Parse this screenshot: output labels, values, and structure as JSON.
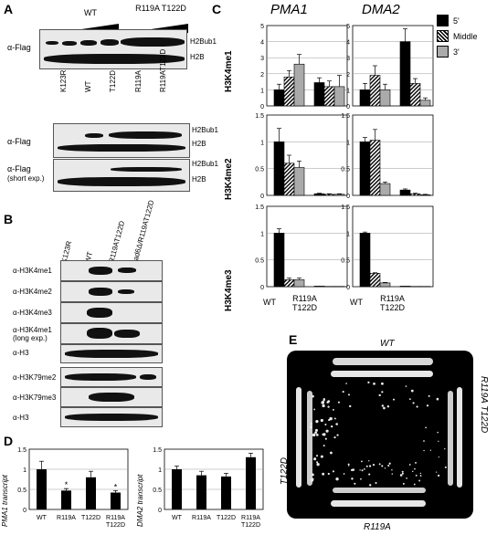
{
  "panels": {
    "a": {
      "letter": "A",
      "top_lanes": [
        "WT",
        "R119A T122D"
      ],
      "top_antibody": "α-Flag",
      "top_bands": [
        "H2Bub1",
        "H2B"
      ],
      "mid_lanes": [
        "K123R",
        "WT",
        "T122D",
        "R119A",
        "R119AT122D"
      ],
      "mid_antibody": "α-Flag",
      "mid_short_antibody": "α-Flag",
      "mid_short_note": "(short exp.)",
      "mid_bands": [
        "H2Bub1",
        "H2B"
      ],
      "short_bands": [
        "H2Bub1",
        "H2B"
      ]
    },
    "b": {
      "letter": "B",
      "lanes": [
        "K123R",
        "WT",
        "R119AT122D",
        "rad6Δ/R119AT122D"
      ],
      "rows1": [
        "α-H3K4me1",
        "α-H3K4me2",
        "α-H3K4me3",
        "α-H3K4me1",
        "α-H3"
      ],
      "long_note": "(long exp.)",
      "rows2": [
        "α-H3K79me2",
        "α-H3K79me3",
        "α-H3"
      ]
    },
    "c": {
      "letter": "C",
      "col_titles": [
        "PMA1",
        "DMA2"
      ],
      "row_labels": [
        "H3K4me1",
        "H3K4me2",
        "H3K4me3"
      ],
      "x_labels": [
        "WT",
        "R119A",
        "T122D"
      ],
      "legend": [
        "5'",
        "Middle",
        "3'"
      ]
    },
    "d": {
      "letter": "D",
      "ylabels": [
        "PMA1 transcript",
        "DMA2 transcript"
      ],
      "x_labels": [
        "WT",
        "R119A",
        "T122D",
        "R119A",
        "T122D"
      ],
      "star": "*"
    },
    "e": {
      "letter": "E",
      "labels": [
        "WT",
        "T122D",
        "R119A T122D",
        "R119A"
      ]
    }
  },
  "chart_data": [
    {
      "type": "bar",
      "panel": "C",
      "gene": "PMA1",
      "mark": "H3K4me1",
      "categories": [
        "WT",
        "R119A T122D"
      ],
      "series": [
        {
          "name": "5'",
          "values": [
            1.0,
            1.45
          ]
        },
        {
          "name": "Middle",
          "values": [
            1.8,
            1.2
          ]
        },
        {
          "name": "3'",
          "values": [
            2.6,
            1.2
          ]
        }
      ],
      "errors": [
        [
          0.35,
          0.3
        ],
        [
          0.4,
          0.35
        ],
        [
          0.6,
          0.7
        ]
      ],
      "ylim": [
        0,
        5
      ],
      "yticks": [
        0,
        1,
        2,
        3,
        4,
        5
      ]
    },
    {
      "type": "bar",
      "panel": "C",
      "gene": "DMA2",
      "mark": "H3K4me1",
      "categories": [
        "WT",
        "R119A T122D"
      ],
      "series": [
        {
          "name": "5'",
          "values": [
            1.0,
            4.0
          ]
        },
        {
          "name": "Middle",
          "values": [
            1.9,
            1.4
          ]
        },
        {
          "name": "3'",
          "values": [
            1.0,
            0.35
          ]
        }
      ],
      "errors": [
        [
          0.4,
          0.8
        ],
        [
          0.6,
          0.3
        ],
        [
          0.35,
          0.15
        ]
      ],
      "ylim": [
        0,
        5
      ],
      "yticks": [
        0,
        1,
        2,
        3,
        4,
        5
      ]
    },
    {
      "type": "bar",
      "panel": "C",
      "gene": "PMA1",
      "mark": "H3K4me2",
      "categories": [
        "WT",
        "R119A T122D"
      ],
      "series": [
        {
          "name": "5'",
          "values": [
            1.0,
            0.03
          ]
        },
        {
          "name": "Middle",
          "values": [
            0.6,
            0.02
          ]
        },
        {
          "name": "3'",
          "values": [
            0.52,
            0.02
          ]
        }
      ],
      "errors": [
        [
          0.25,
          0.01
        ],
        [
          0.15,
          0.01
        ],
        [
          0.12,
          0.01
        ]
      ],
      "ylim": [
        0,
        1.5
      ],
      "yticks": [
        0,
        0.5,
        1,
        1.5
      ]
    },
    {
      "type": "bar",
      "panel": "C",
      "gene": "DMA2",
      "mark": "H3K4me2",
      "categories": [
        "WT",
        "R119A T122D"
      ],
      "series": [
        {
          "name": "5'",
          "values": [
            1.0,
            0.1
          ]
        },
        {
          "name": "Middle",
          "values": [
            1.03,
            0.03
          ]
        },
        {
          "name": "3'",
          "values": [
            0.22,
            0.01
          ]
        }
      ],
      "errors": [
        [
          0.08,
          0.02
        ],
        [
          0.2,
          0.01
        ],
        [
          0.03,
          0.01
        ]
      ],
      "ylim": [
        0,
        1.5
      ],
      "yticks": [
        0,
        0.5,
        1,
        1.5
      ]
    },
    {
      "type": "bar",
      "panel": "C",
      "gene": "PMA1",
      "mark": "H3K4me3",
      "categories": [
        "WT",
        "R119A T122D"
      ],
      "series": [
        {
          "name": "5'",
          "values": [
            1.0,
            0.01
          ]
        },
        {
          "name": "Middle",
          "values": [
            0.13,
            0.005
          ]
        },
        {
          "name": "3'",
          "values": [
            0.13,
            0.005
          ]
        }
      ],
      "errors": [
        [
          0.08,
          0
        ],
        [
          0.03,
          0
        ],
        [
          0.03,
          0
        ]
      ],
      "ylim": [
        0,
        1.5
      ],
      "yticks": [
        0,
        0.5,
        1,
        1.5
      ]
    },
    {
      "type": "bar",
      "panel": "C",
      "gene": "DMA2",
      "mark": "H3K4me3",
      "categories": [
        "WT",
        "R119A T122D"
      ],
      "series": [
        {
          "name": "5'",
          "values": [
            1.0,
            0.01
          ]
        },
        {
          "name": "Middle",
          "values": [
            0.25,
            0.005
          ]
        },
        {
          "name": "3'",
          "values": [
            0.07,
            0.005
          ]
        }
      ],
      "errors": [
        [
          0.02,
          0
        ],
        [
          0.01,
          0
        ],
        [
          0.01,
          0
        ]
      ],
      "ylim": [
        0,
        1.5
      ],
      "yticks": [
        0,
        0.5,
        1,
        1.5
      ]
    },
    {
      "type": "bar",
      "panel": "D",
      "gene": "PMA1",
      "categories": [
        "WT",
        "R119A",
        "T122D",
        "R119A T122D"
      ],
      "values": [
        1.0,
        0.47,
        0.8,
        0.42
      ],
      "errors": [
        0.2,
        0.05,
        0.15,
        0.05
      ],
      "significant": [
        false,
        true,
        false,
        true
      ],
      "ylim": [
        0,
        1.5
      ],
      "yticks": [
        0,
        0.5,
        1,
        1.5
      ],
      "ylabel": "PMA1 transcript"
    },
    {
      "type": "bar",
      "panel": "D",
      "gene": "DMA2",
      "categories": [
        "WT",
        "R119A",
        "T122D",
        "R119A T122D"
      ],
      "values": [
        1.0,
        0.85,
        0.82,
        1.3
      ],
      "errors": [
        0.08,
        0.1,
        0.08,
        0.1
      ],
      "ylim": [
        0,
        1.5
      ],
      "yticks": [
        0,
        0.5,
        1,
        1.5
      ],
      "ylabel": "DMA2 transcript"
    }
  ]
}
